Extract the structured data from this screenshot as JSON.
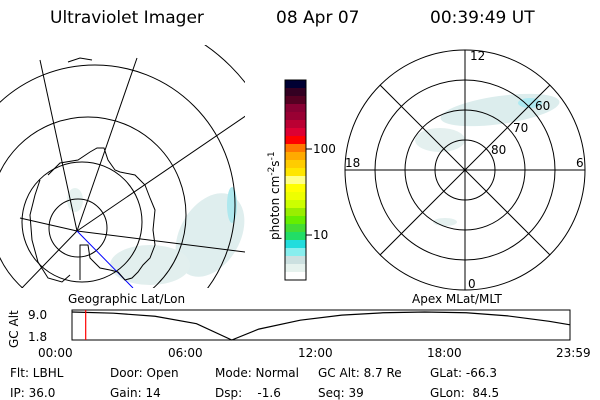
{
  "header": {
    "instrument": "Ultraviolet Imager",
    "date": "08 Apr 07",
    "time": "00:39:49 UT"
  },
  "geo_map": {
    "label": "Geographic Lat/Lon"
  },
  "mag_map": {
    "label": "Apex MLat/MLT",
    "lat_labels": [
      "80",
      "70",
      "60"
    ],
    "mlt_labels": {
      "top": "12",
      "left": "18",
      "right": "6",
      "bottom": "0"
    }
  },
  "colorbar": {
    "unit_label": "photon cm",
    "unit_exp1": "-2",
    "unit_s": "s",
    "unit_exp2": "-1",
    "tick_labels": [
      "100",
      "10"
    ],
    "scale": "log",
    "colors": [
      "#000033",
      "#330022",
      "#550022",
      "#880033",
      "#990033",
      "#bb0033",
      "#dd0033",
      "#ff0000",
      "#ff7700",
      "#ffaa00",
      "#ffcc00",
      "#ffe600",
      "#ffff88",
      "#ffff00",
      "#eeff00",
      "#ccff00",
      "#99ee00",
      "#66ee00",
      "#44dd33",
      "#22dd66",
      "#22dddd",
      "#88eeee",
      "#cce0e0",
      "#e6f2ee",
      "#ffffff"
    ]
  },
  "chart_data": {
    "type": "line",
    "ylabel": "GC Alt",
    "y_tick_labels": [
      "9.0",
      "1.8"
    ],
    "ylim": [
      1.8,
      9.0
    ],
    "x_tick_labels": [
      "00:00",
      "06:00",
      "12:00",
      "18:00",
      "23:59"
    ],
    "xlim_hours": [
      0,
      24
    ],
    "x": [
      0,
      2,
      4,
      6,
      7.7,
      9,
      11,
      13,
      15,
      17,
      19,
      21,
      23,
      24
    ],
    "values": [
      9.0,
      8.7,
      7.9,
      6.0,
      1.8,
      4.6,
      6.9,
      8.2,
      8.8,
      9.0,
      8.8,
      8.0,
      6.6,
      5.7
    ],
    "current_time_hours": 0.66,
    "current_time_color": "#ff0000"
  },
  "status": {
    "row1": [
      "Flt: LBHL",
      "Door: Open",
      "Mode: Normal",
      "GC Alt: 8.7 Re",
      "GLat: -66.3"
    ],
    "row2": [
      "IP: 36.0",
      "Gain: 14",
      "Dsp:    -1.6",
      "Seq: 39",
      "GLon:  84.5"
    ]
  }
}
